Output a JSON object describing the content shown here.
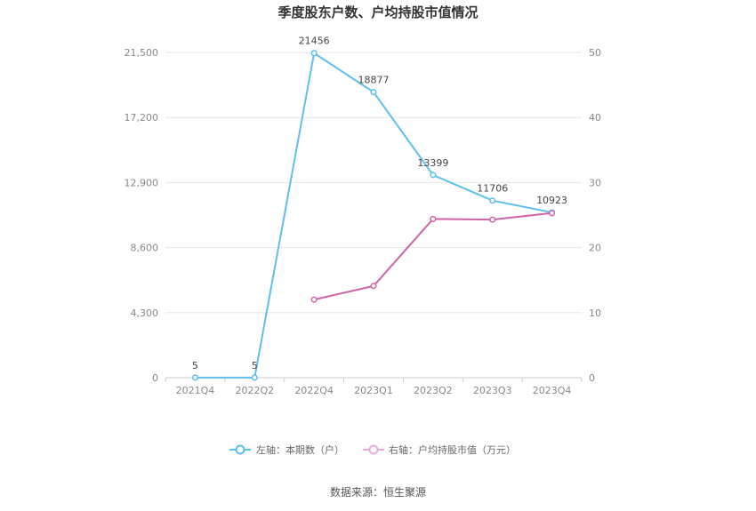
{
  "chart_data": {
    "type": "line",
    "title": "季度股东户数、户均持股市值情况",
    "categories": [
      "2021Q4",
      "2022Q2",
      "2022Q4",
      "2023Q1",
      "2023Q2",
      "2023Q3",
      "2023Q4"
    ],
    "left_axis": {
      "ticks": [
        "0",
        "4,300",
        "8,600",
        "12,900",
        "17,200",
        "21,500"
      ],
      "ylim": [
        0,
        21500
      ]
    },
    "right_axis": {
      "ticks": [
        "0",
        "10",
        "20",
        "30",
        "40",
        "50"
      ],
      "ylim": [
        0,
        50
      ]
    },
    "series": [
      {
        "name": "左轴：本期数（户）",
        "axis": "left",
        "color": "#5bc0f0",
        "values": [
          5,
          5,
          21456,
          18877,
          13399,
          11706,
          10923
        ],
        "labels": [
          "5",
          "5",
          "21456",
          "18877",
          "13399",
          "11706",
          "10923"
        ]
      },
      {
        "name": "右轴：户均持股市值（万元）",
        "axis": "right",
        "color": "#d063a8",
        "values": [
          null,
          null,
          12.0,
          14.1,
          24.4,
          24.3,
          25.3
        ]
      }
    ],
    "grid": true,
    "legend_position": "bottom-center"
  },
  "source": "数据来源：恒生聚源"
}
